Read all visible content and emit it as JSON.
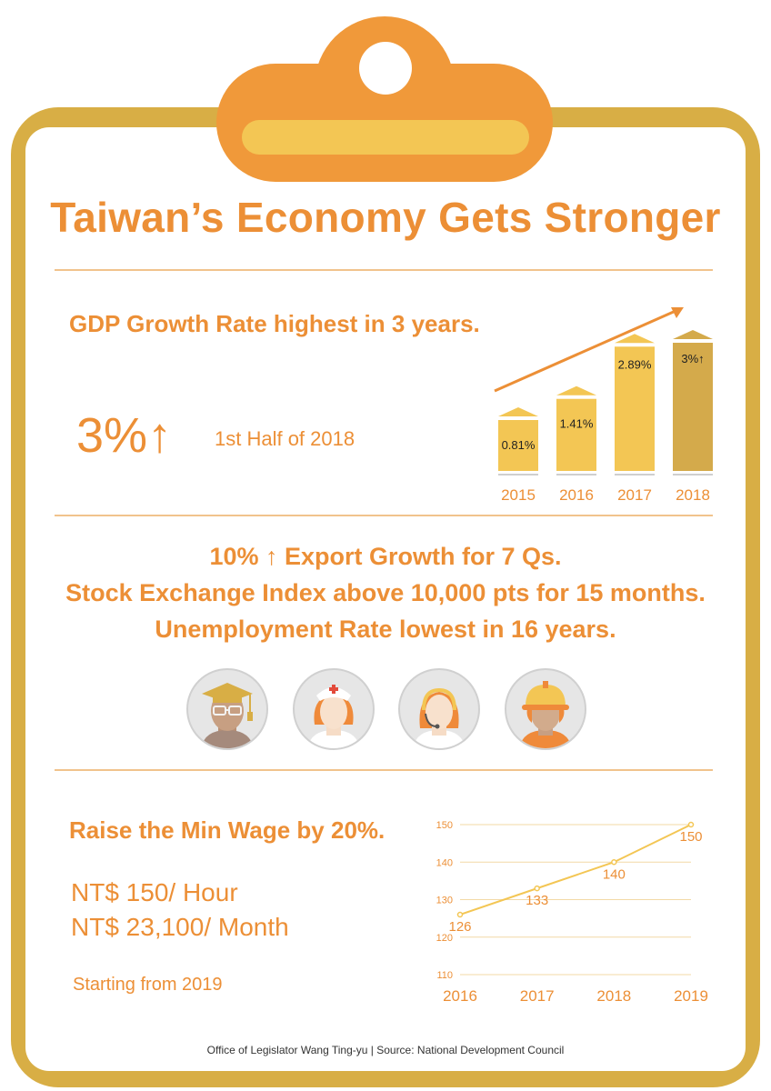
{
  "title": "Taiwan’s Economy Gets Stronger",
  "gdp": {
    "heading": "GDP Growth Rate highest in 3 years.",
    "value": "3%↑",
    "period": "1st Half of 2018"
  },
  "colors": {
    "orange": "#ec8f36",
    "gold": "#d8ae45",
    "yellow": "#f3c654",
    "dark_gold": "#d4aa4b"
  },
  "chart_data": [
    {
      "type": "bar",
      "title": "",
      "categories": [
        "2015",
        "2016",
        "2017",
        "2018"
      ],
      "values": [
        0.81,
        1.41,
        2.89,
        3.0
      ],
      "data_labels": [
        "0.81%",
        "1.41%",
        "2.89%",
        "3%↑"
      ],
      "trend_arrow": true
    },
    {
      "type": "line",
      "title": "",
      "x": [
        "2016",
        "2017",
        "2018",
        "2019"
      ],
      "values": [
        126,
        133,
        140,
        150
      ],
      "data_labels": [
        "126",
        "133",
        "140",
        "150"
      ],
      "y_ticks": [
        "110",
        "120",
        "130",
        "140",
        "150"
      ],
      "ylim": [
        110,
        150
      ],
      "grid": true
    }
  ],
  "stats": [
    "10% ↑ Export Growth for 7 Qs.",
    "Stock Exchange Index above 10,000 pts for 15 months.",
    "Unemployment Rate lowest in 16 years."
  ],
  "avatars": [
    "graduate-icon",
    "nurse-icon",
    "call-center-operator-icon",
    "construction-worker-icon"
  ],
  "wage": {
    "heading": "Raise the Min Wage by 20%.",
    "hourly": "NT$ 150/ Hour",
    "monthly": "NT$ 23,100/ Month",
    "start": "Starting from 2019"
  },
  "footer": "Office of Legislator Wang Ting-yu | Source: National Development Council"
}
